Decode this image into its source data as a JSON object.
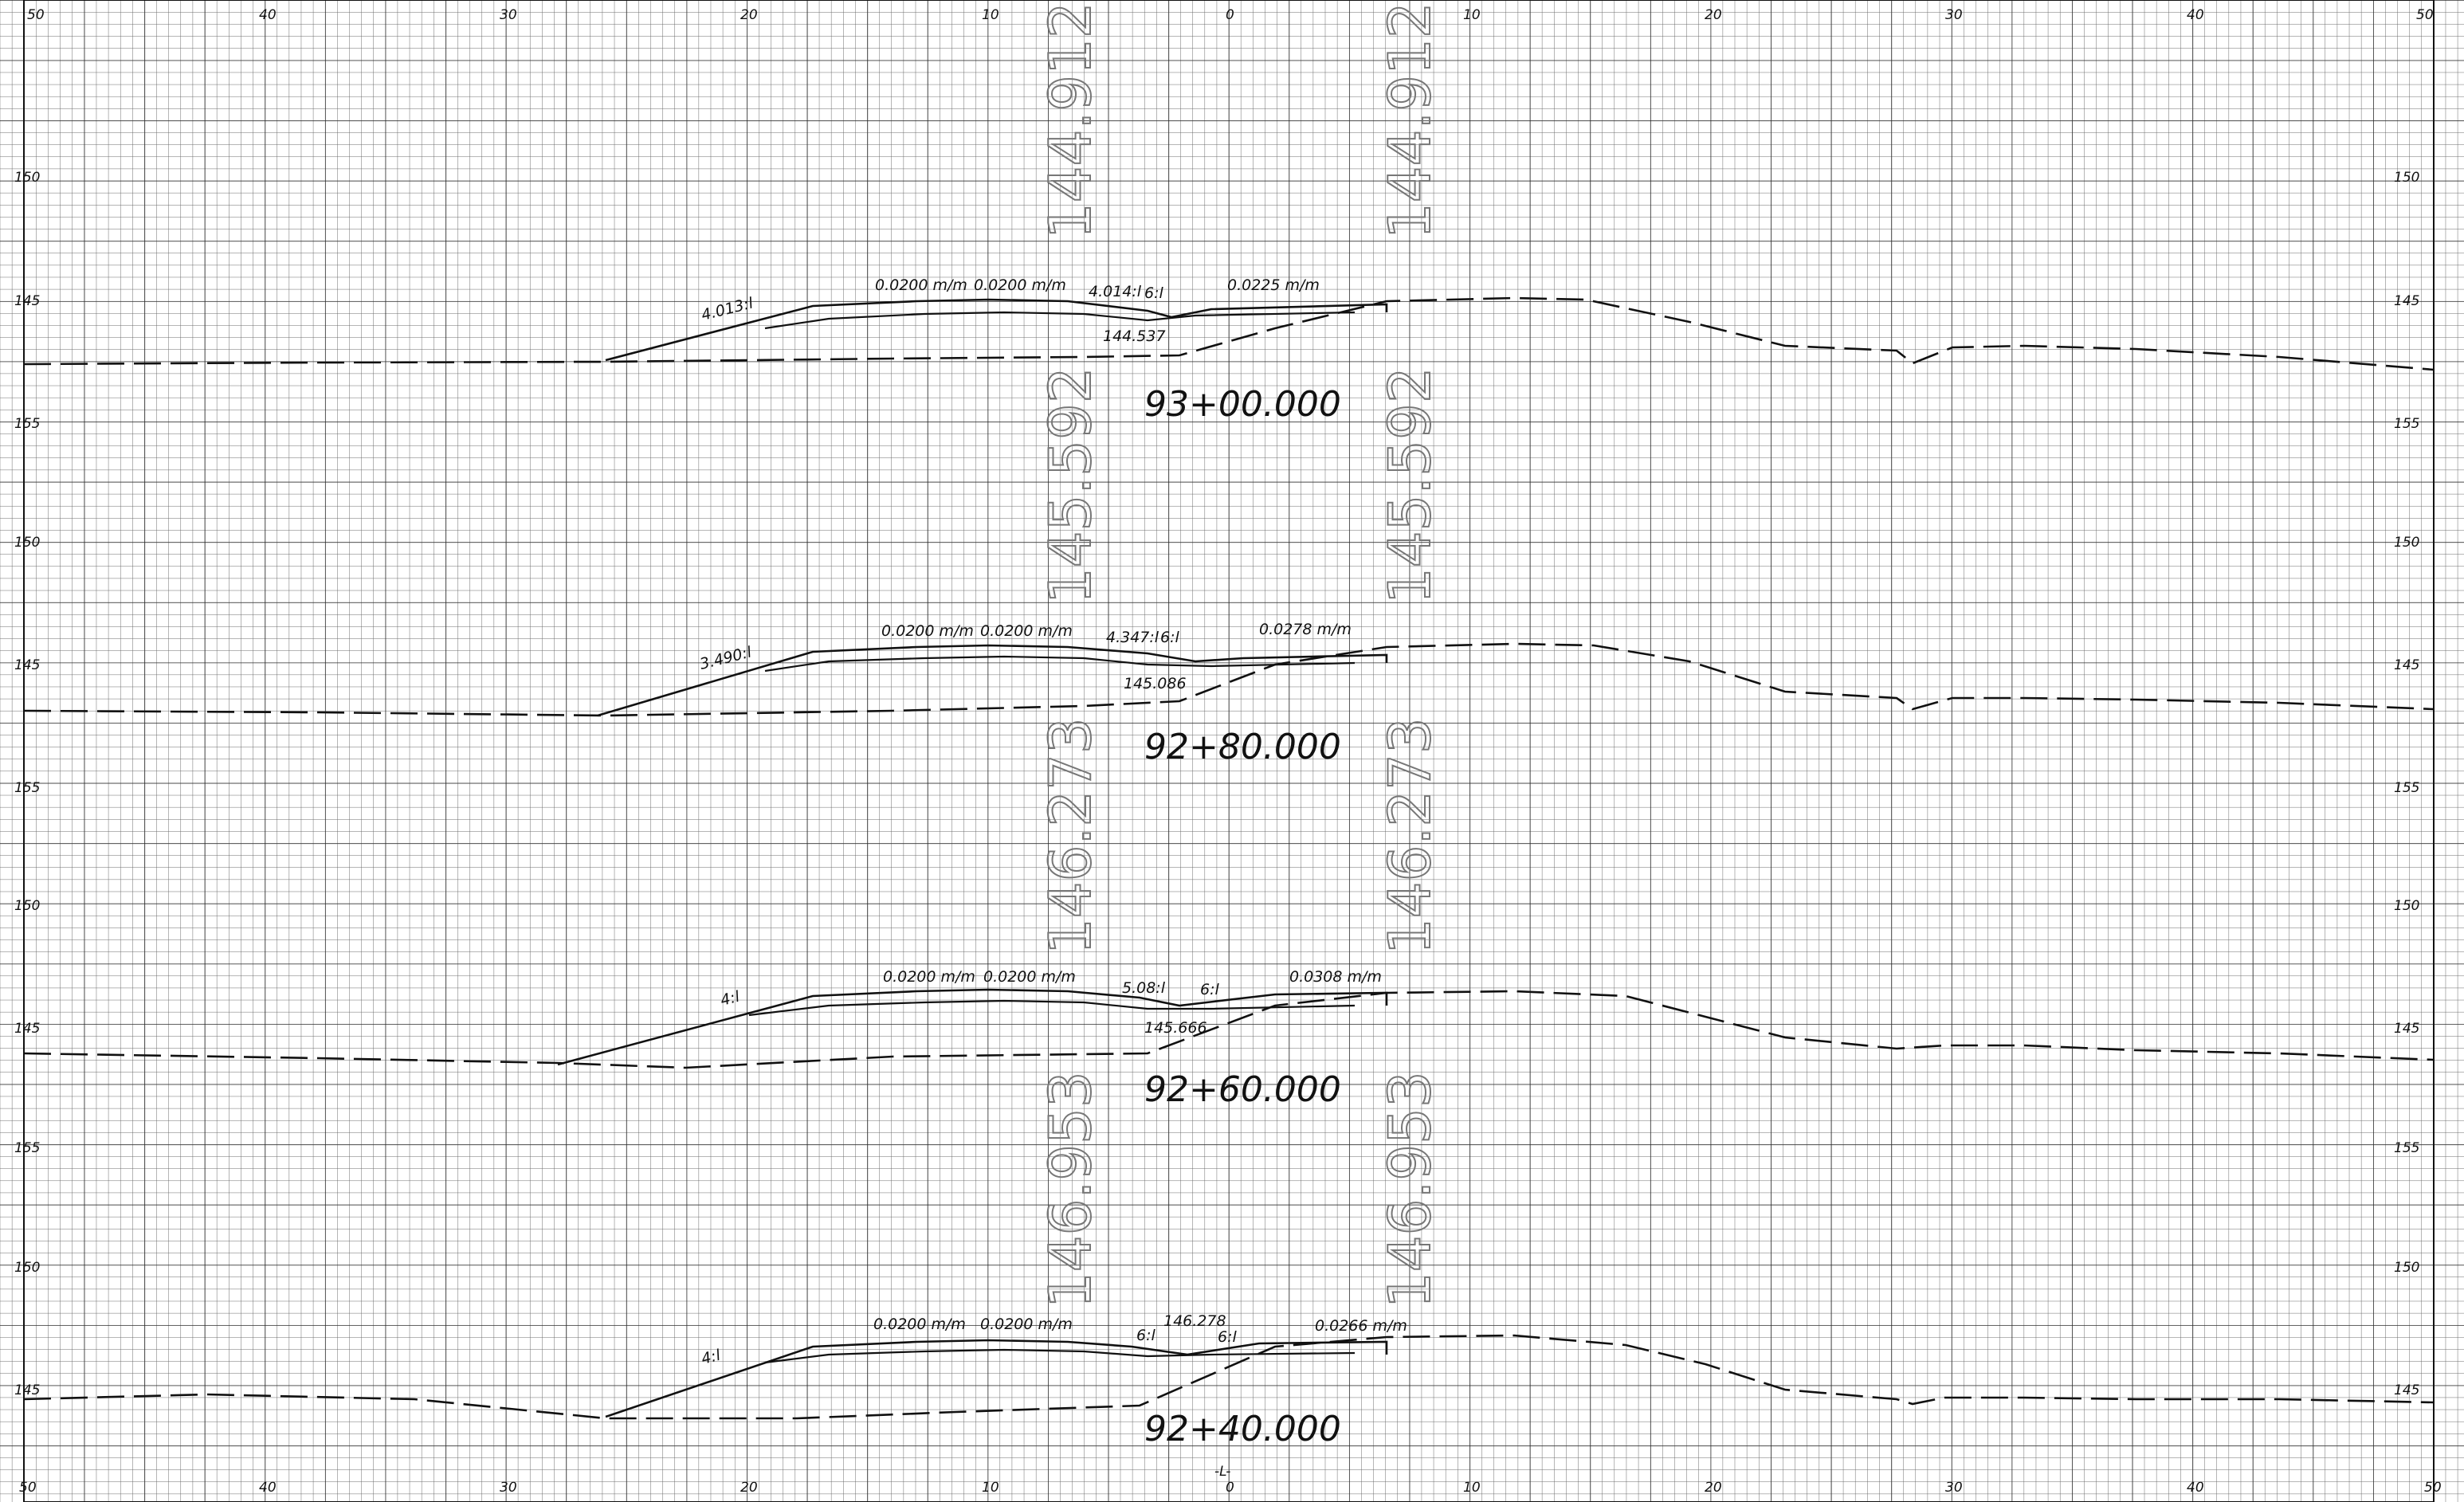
{
  "x_axis": {
    "top_labels": [
      "50",
      "40",
      "30",
      "20",
      "10",
      "0",
      "10",
      "20",
      "30",
      "40",
      "50"
    ],
    "bottom_labels": [
      "50",
      "40",
      "30",
      "20",
      "10",
      "0",
      "10",
      "20",
      "30",
      "40",
      "50"
    ],
    "centerline_label": "-L-"
  },
  "sections": [
    {
      "station": "93+00.000",
      "elev_tag_left": "144.912",
      "elev_tag_right": "144.912",
      "y_labels": [
        "150",
        "145",
        "155"
      ],
      "slope_left": "4.013:l",
      "slope_middle_1": "0.0200 m/m",
      "slope_middle_2": "0.0200 m/m",
      "slope_ratio": "4.014:l",
      "side_slope": "6:l",
      "slope_right": "0.0225 m/m",
      "finished_elev": "144.537"
    },
    {
      "station": "92+80.000",
      "elev_tag_left": "145.592",
      "elev_tag_right": "145.592",
      "y_labels": [
        "150",
        "145",
        "155"
      ],
      "slope_left": "3.490:l",
      "slope_middle_1": "0.0200 m/m",
      "slope_middle_2": "0.0200 m/m",
      "slope_ratio": "4.347:l",
      "side_slope": "6:l",
      "slope_right": "0.0278 m/m",
      "finished_elev": "145.086"
    },
    {
      "station": "92+60.000",
      "elev_tag_left": "146.273",
      "elev_tag_right": "146.273",
      "y_labels": [
        "150",
        "145",
        "155"
      ],
      "slope_left": "4:l",
      "slope_middle_1": "0.0200 m/m",
      "slope_middle_2": "0.0200 m/m",
      "slope_ratio": "5.08:l",
      "side_slope": "6:l",
      "slope_right": "0.0308 m/m",
      "finished_elev": "145.666"
    },
    {
      "station": "92+40.000",
      "elev_tag_left": "146.953",
      "elev_tag_right": "146.953",
      "y_labels": [
        "150",
        "145"
      ],
      "slope_left": "4:l",
      "slope_middle_1": "0.0200 m/m",
      "slope_middle_2": "0.0200 m/m",
      "slope_ratio": "6:l",
      "side_slope": "6:l",
      "slope_right": "0.0266 m/m",
      "finished_elev": "146.278"
    }
  ]
}
